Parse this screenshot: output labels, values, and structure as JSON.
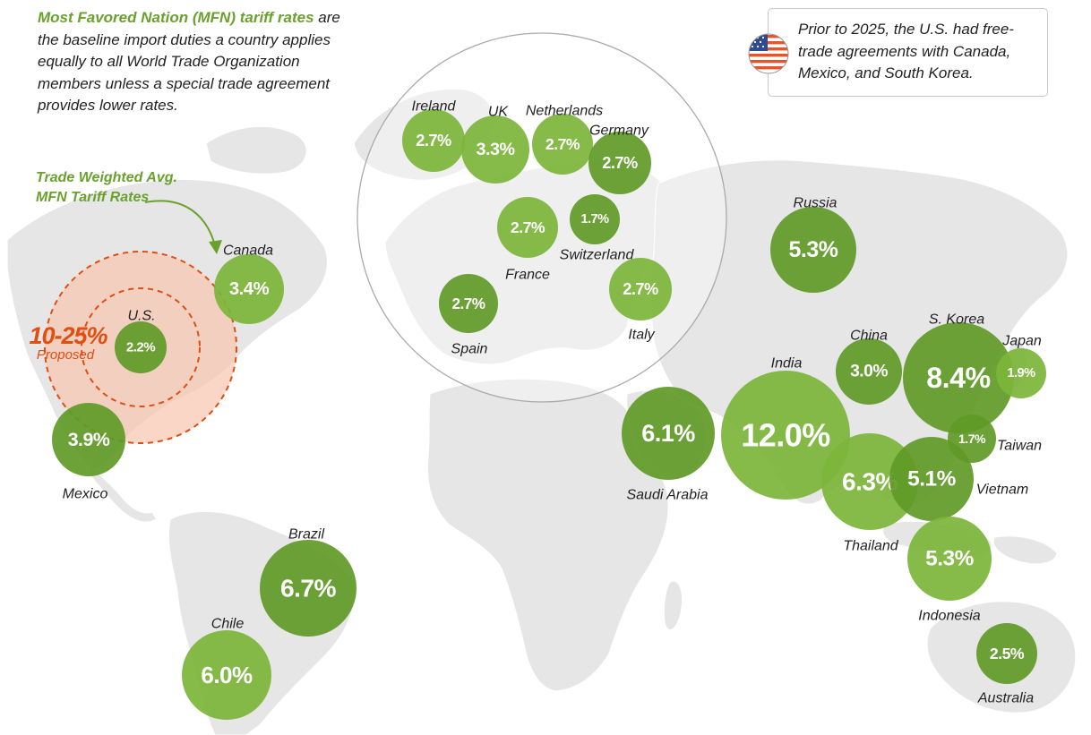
{
  "intro": {
    "highlight": "Most Favored Nation (MFN) tariff rates",
    "rest": " are the baseline import duties a country applies equally to all World Trade Organization members unless a special trade agreement provides lower rates."
  },
  "note": {
    "text": "Prior to 2025, the U.S. had free-trade agreements with Canada, Mexico, and South Korea.",
    "icon": "us-flag-icon"
  },
  "legend": {
    "line1": "Trade Weighted Avg.",
    "line2": "MFN Tariff Rates",
    "color": "#6aa12e"
  },
  "proposed": {
    "value": "10-25%",
    "label": "Proposed",
    "color": "#e04e12"
  },
  "colors": {
    "bubble_light": "#7cb53a",
    "bubble_dark": "#5f9a27",
    "land": "#e6e6e6",
    "accent": "#6aa12e"
  },
  "chart_data": {
    "type": "bubble-map",
    "title": "Trade Weighted Avg. MFN Tariff Rates",
    "unit": "%",
    "zoom_region": "Europe",
    "countries": [
      {
        "name": "U.S.",
        "value": 2.2,
        "label": "2.2%"
      },
      {
        "name": "Canada",
        "value": 3.4,
        "label": "3.4%"
      },
      {
        "name": "Mexico",
        "value": 3.9,
        "label": "3.9%"
      },
      {
        "name": "Brazil",
        "value": 6.7,
        "label": "6.7%"
      },
      {
        "name": "Chile",
        "value": 6.0,
        "label": "6.0%"
      },
      {
        "name": "Ireland",
        "value": 2.7,
        "label": "2.7%"
      },
      {
        "name": "UK",
        "value": 3.3,
        "label": "3.3%"
      },
      {
        "name": "Netherlands",
        "value": 2.7,
        "label": "2.7%"
      },
      {
        "name": "Germany",
        "value": 2.7,
        "label": "2.7%"
      },
      {
        "name": "France",
        "value": 2.7,
        "label": "2.7%"
      },
      {
        "name": "Switzerland",
        "value": 1.7,
        "label": "1.7%"
      },
      {
        "name": "Spain",
        "value": 2.7,
        "label": "2.7%"
      },
      {
        "name": "Italy",
        "value": 2.7,
        "label": "2.7%"
      },
      {
        "name": "Russia",
        "value": 5.3,
        "label": "5.3%"
      },
      {
        "name": "China",
        "value": 3.0,
        "label": "3.0%"
      },
      {
        "name": "S. Korea",
        "value": 8.4,
        "label": "8.4%"
      },
      {
        "name": "Japan",
        "value": 1.9,
        "label": "1.9%"
      },
      {
        "name": "Taiwan",
        "value": 1.7,
        "label": "1.7%"
      },
      {
        "name": "India",
        "value": 12.0,
        "label": "12.0%"
      },
      {
        "name": "Saudi Arabia",
        "value": 6.1,
        "label": "6.1%"
      },
      {
        "name": "Thailand",
        "value": 6.3,
        "label": "6.3%"
      },
      {
        "name": "Vietnam",
        "value": 5.1,
        "label": "5.1%"
      },
      {
        "name": "Indonesia",
        "value": 5.3,
        "label": "5.3%"
      },
      {
        "name": "Australia",
        "value": 2.5,
        "label": "2.5%"
      }
    ]
  }
}
